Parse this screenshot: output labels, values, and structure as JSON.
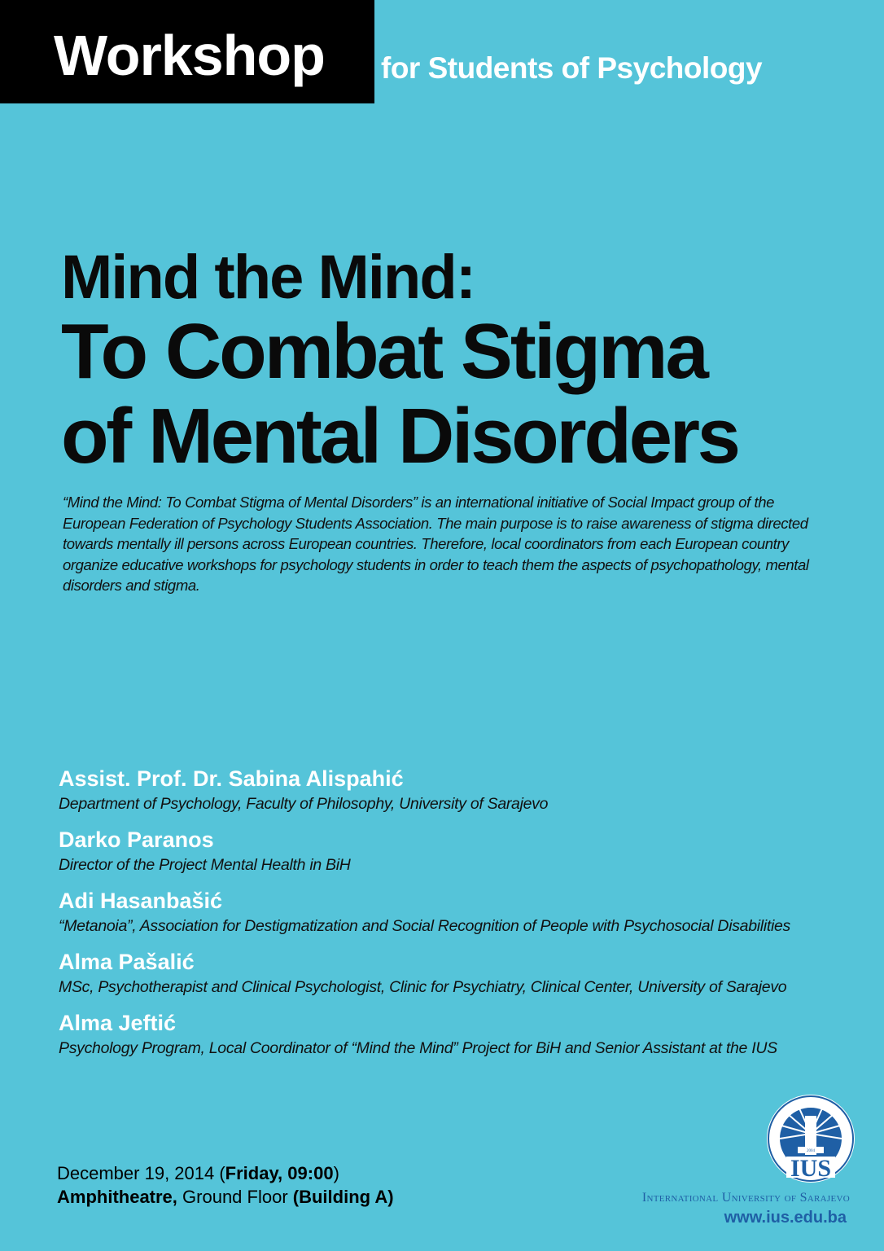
{
  "header": {
    "title": "Workshop",
    "subtitle": "for Students of Psychology"
  },
  "title": {
    "line1": "Mind the Mind:",
    "line2": "To Combat Stigma",
    "line3": "of Mental Disorders"
  },
  "intro": "“Mind the Mind: To Combat Stigma of Mental Disorders” is an international initiative of Social Impact group of the European Federation of Psychology Students Association. The main purpose is to raise awareness of stigma directed towards mentally ill persons across European countries. Therefore, local coordinators from each European country organize  educative workshops for psychology students in order to teach them the aspects of psychopathology, mental disorders and stigma.",
  "speakers": [
    {
      "name": "Assist. Prof. Dr. Sabina Alispahić",
      "desc": "Department of Psychology, Faculty of Philosophy, University of Sarajevo"
    },
    {
      "name": "Darko Paranos",
      "desc": "Director of the Project Mental Health in BiH"
    },
    {
      "name": "Adi Hasanbašić",
      "desc": "“Metanoia”, Association for Destigmatization and Social Recognition of People with Psychosocial Disabilities"
    },
    {
      "name": "Alma Pašalić",
      "desc": "MSc, Psychotherapist and Clinical Psychologist, Clinic for Psychiatry, Clinical Center, University of Sarajevo"
    },
    {
      "name": "Alma Jeftić",
      "desc": "Psychology Program, Local Coordinator of “Mind the Mind” Project for BiH and Senior Assistant at the IUS"
    }
  ],
  "event": {
    "date": "December 19, 2014 (",
    "day_time": "Friday, 09:00",
    "date_close": ")",
    "venue": "Amphitheatre,",
    "floor": " Ground Floor ",
    "building": "(Building A)"
  },
  "footer": {
    "logo_text": "INTERNATIONAL UNIVERSITY OF SARAJEVO · 2004 · IUS",
    "university": "International University of Sarajevo",
    "url": "www.ius.edu.ba"
  },
  "colors": {
    "background": "#55c4d9",
    "header_box": "#000000",
    "brand_blue": "#1f5fa5",
    "accent_text": "#ffffff"
  }
}
